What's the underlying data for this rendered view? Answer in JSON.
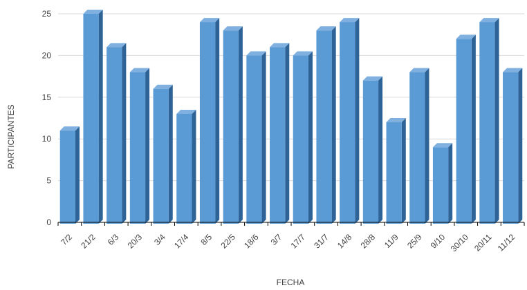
{
  "chart_data": {
    "type": "bar",
    "title": "",
    "xlabel": "FECHA",
    "ylabel": "PARTICIPANTES",
    "categories": [
      "7/2",
      "21/2",
      "6/3",
      "20/3",
      "3/4",
      "17/4",
      "8/5",
      "22/5",
      "18/6",
      "3/7",
      "17/7",
      "31/7",
      "14/8",
      "28/8",
      "11/9",
      "25/9",
      "9/10",
      "30/10",
      "20/11",
      "11/12"
    ],
    "values": [
      11,
      25,
      21,
      18,
      16,
      13,
      24,
      23,
      20,
      21,
      20,
      23,
      24,
      17,
      12,
      18,
      9,
      22,
      24,
      18
    ],
    "ylim": [
      0,
      25
    ],
    "yticks": [
      0,
      5,
      10,
      15,
      20,
      25
    ],
    "grid": true,
    "legend": "none",
    "colors": {
      "front": "#5b9bd5",
      "side": "#2e6398",
      "top": "#7fb0e0",
      "grid": "#d9d9d9",
      "axis": "#000000"
    }
  }
}
